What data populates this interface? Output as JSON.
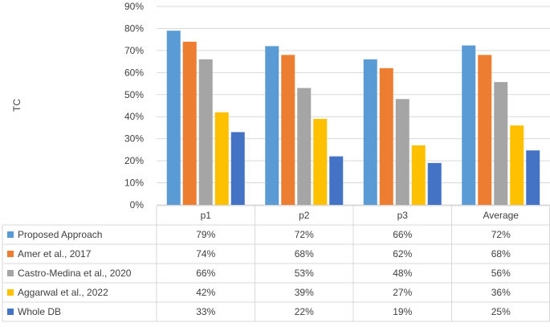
{
  "chart_data": {
    "type": "bar",
    "ylabel": "TC",
    "categories": [
      "p1",
      "p2",
      "p3",
      "Average"
    ],
    "ylim": [
      0,
      90
    ],
    "yticks": [
      "0%",
      "10%",
      "20%",
      "30%",
      "40%",
      "50%",
      "60%",
      "70%",
      "80%",
      "90%"
    ],
    "grid": true,
    "legend": "data-table",
    "series": [
      {
        "name": "Proposed Approach",
        "color": "#5B9BD5",
        "values": [
          79,
          72,
          66,
          72.3
        ],
        "labels": [
          "79%",
          "72%",
          "66%",
          "72%"
        ]
      },
      {
        "name": "Amer et al., 2017",
        "color": "#ED7D31",
        "values": [
          74,
          68,
          62,
          68
        ],
        "labels": [
          "74%",
          "68%",
          "62%",
          "68%"
        ]
      },
      {
        "name": "Castro-Medina et al., 2020",
        "color": "#A5A5A5",
        "values": [
          66,
          53,
          48,
          55.7
        ],
        "labels": [
          "66%",
          "53%",
          "48%",
          "56%"
        ]
      },
      {
        "name": "Aggarwal et al., 2022",
        "color": "#FFC000",
        "values": [
          42,
          39,
          27,
          36
        ],
        "labels": [
          "42%",
          "39%",
          "27%",
          "36%"
        ]
      },
      {
        "name": "Whole DB",
        "color": "#4472C4",
        "values": [
          33,
          22,
          19,
          24.7
        ],
        "labels": [
          "33%",
          "22%",
          "19%",
          "25%"
        ]
      }
    ]
  }
}
